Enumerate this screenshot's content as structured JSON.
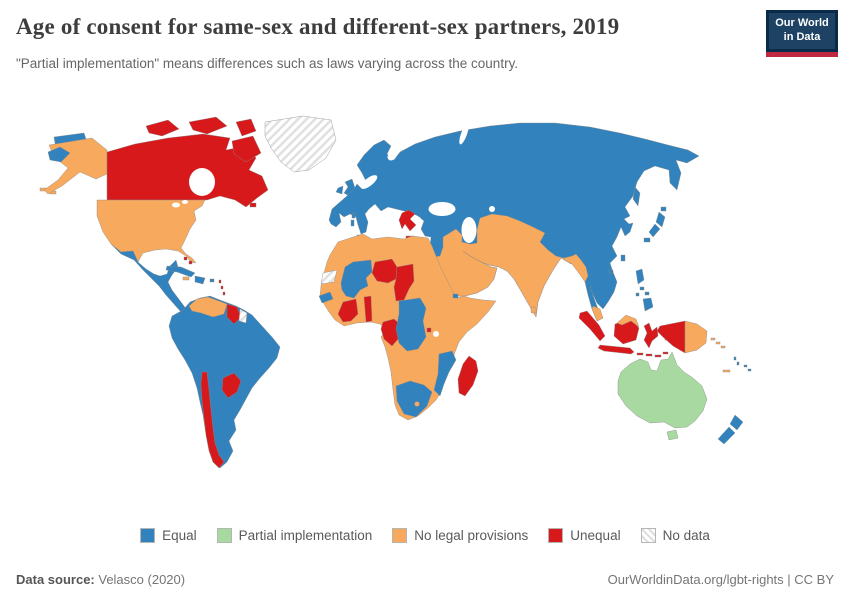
{
  "header": {
    "title": "Age of consent for same-sex and different-sex partners, 2019",
    "subtitle": "\"Partial implementation\" means differences such as laws varying across the country.",
    "logo": {
      "line1": "Our World",
      "line2": "in Data"
    }
  },
  "legend": {
    "items": [
      {
        "key": "equal",
        "label": "Equal",
        "color": "#3182bd"
      },
      {
        "key": "partial",
        "label": "Partial implementation",
        "color": "#a7d9a0"
      },
      {
        "key": "none",
        "label": "No legal provisions",
        "color": "#f7a95e"
      },
      {
        "key": "unequal",
        "label": "Unequal",
        "color": "#d7191c"
      },
      {
        "key": "no_data",
        "label": "No data",
        "color": "#ffffff"
      }
    ]
  },
  "footer": {
    "source_label": "Data source:",
    "source_value": " Velasco (2020)",
    "right": "OurWorldinData.org/lgbt-rights | CC BY"
  },
  "map": {
    "year": "2019",
    "regions": {
      "chukotka_wrap": "equal",
      "aleutians_wrap": "none",
      "alaska": "none",
      "canada": "unequal",
      "greenland": "no_data",
      "usa": "none",
      "mexico_central_america": "equal",
      "cuba": "equal",
      "hispaniola": "equal",
      "jamaica": "none",
      "puerto_rico": "equal",
      "bahamas": "unequal",
      "lesser_antilles": "unequal",
      "south_america": "equal",
      "venezuela": "none",
      "guyana": "unequal",
      "suriname": "no_data",
      "chile": "unequal",
      "paraguay": "unequal",
      "iceland": "equal",
      "uk": "equal",
      "ireland": "equal",
      "eurasia": "equal",
      "greece": "unequal",
      "middle_east_south_asia": "none",
      "sri_lanka": "none",
      "malaysia_peninsula": "none",
      "malaysia_borneo": "none",
      "africa": "none",
      "western_sahara": "no_data",
      "senegal": "equal",
      "mali_burkina": "equal",
      "niger": "unequal",
      "chad": "unequal",
      "cote_divoire_ghana": "unequal",
      "benin_togo": "unequal",
      "gabon_congo": "unequal",
      "car_drc": "equal",
      "burundi": "unequal",
      "mozambique": "equal",
      "south_africa": "equal",
      "lesotho": "none",
      "djibouti": "equal",
      "madagascar": "unequal",
      "mediterranean_islands": "equal",
      "japan": "equal",
      "sakhalin": "equal",
      "taiwan": "equal",
      "hainan": "equal",
      "philippines": "equal",
      "indonesia": "unequal",
      "papua_new_guinea": "none",
      "solomon_islands": "none",
      "new_caledonia": "none",
      "fiji": "equal",
      "vanuatu": "equal",
      "australia": "partial",
      "new_zealand": "equal"
    }
  }
}
